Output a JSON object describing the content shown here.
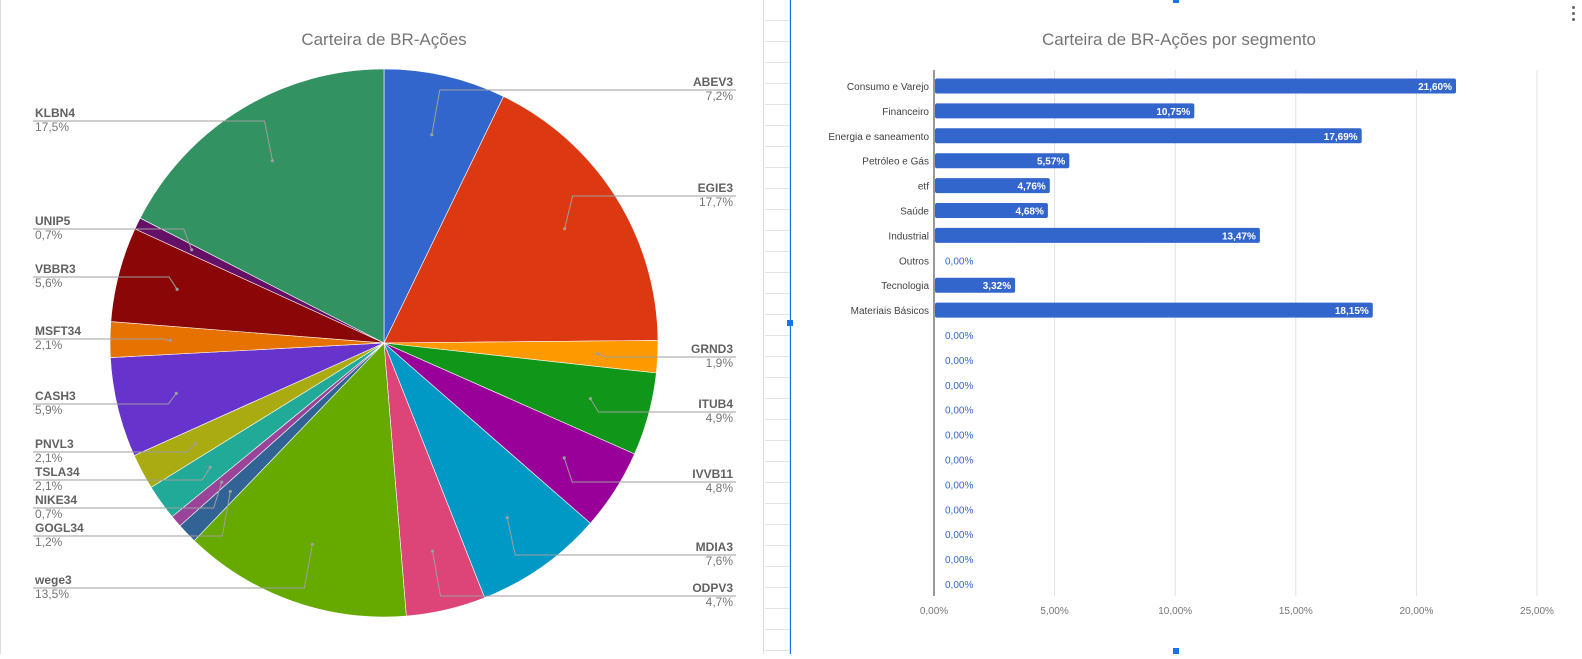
{
  "charts": [
    {
      "type": "pie",
      "title": "Carteira de BR-Ações",
      "slices": [
        {
          "label": "ABEV3",
          "pct_label": "7,2%",
          "value": 7.2,
          "color": "#3366cc"
        },
        {
          "label": "EGIE3",
          "pct_label": "17,7%",
          "value": 17.7,
          "color": "#dc3912"
        },
        {
          "label": "GRND3",
          "pct_label": "1,9%",
          "value": 1.9,
          "color": "#ff9900"
        },
        {
          "label": "ITUB4",
          "pct_label": "4,9%",
          "value": 4.9,
          "color": "#109618"
        },
        {
          "label": "IVVB11",
          "pct_label": "4,8%",
          "value": 4.8,
          "color": "#990099"
        },
        {
          "label": "MDIA3",
          "pct_label": "7,6%",
          "value": 7.6,
          "color": "#0099c6"
        },
        {
          "label": "ODPV3",
          "pct_label": "4,7%",
          "value": 4.7,
          "color": "#dd4477"
        },
        {
          "label": "wege3",
          "pct_label": "13,5%",
          "value": 13.5,
          "color": "#66aa00"
        },
        {
          "label": "GOGL34",
          "pct_label": "1,2%",
          "value": 1.2,
          "color": "#316395"
        },
        {
          "label": "NIKE34",
          "pct_label": "0,7%",
          "value": 0.7,
          "color": "#994499"
        },
        {
          "label": "TSLA34",
          "pct_label": "2,1%",
          "value": 2.1,
          "color": "#22aa99"
        },
        {
          "label": "PNVL3",
          "pct_label": "2,1%",
          "value": 2.1,
          "color": "#aaaa11"
        },
        {
          "label": "CASH3",
          "pct_label": "5,9%",
          "value": 5.9,
          "color": "#6633cc"
        },
        {
          "label": "MSFT34",
          "pct_label": "2,1%",
          "value": 2.1,
          "color": "#e67300"
        },
        {
          "label": "VBBR3",
          "pct_label": "5,6%",
          "value": 5.6,
          "color": "#8b0707"
        },
        {
          "label": "UNIP5",
          "pct_label": "0,7%",
          "value": 0.7,
          "color": "#651067"
        },
        {
          "label": "KLBN4",
          "pct_label": "17,5%",
          "value": 17.5,
          "color": "#329262"
        }
      ]
    },
    {
      "type": "bar",
      "orientation": "horizontal",
      "title": "Carteira de BR-Ações por segmento",
      "categories": [
        "Consumo e Varejo",
        "Financeiro",
        "Energia e saneamento",
        "Petróleo e Gás",
        "etf",
        "Saúde",
        "Industrial",
        "Outros",
        "Tecnologia",
        "Materiais Básicos",
        "",
        "",
        "",
        "",
        "",
        "",
        "",
        "",
        "",
        "",
        ""
      ],
      "values": [
        21.6,
        10.75,
        17.69,
        5.57,
        4.76,
        4.68,
        13.47,
        0,
        3.32,
        18.15,
        0,
        0,
        0,
        0,
        0,
        0,
        0,
        0,
        0,
        0,
        0
      ],
      "value_labels": [
        "21,60%",
        "10,75%",
        "17,69%",
        "5,57%",
        "4,76%",
        "4,68%",
        "13,47%",
        "0,00%",
        "3,32%",
        "18,15%",
        "0,00%",
        "0,00%",
        "0,00%",
        "0,00%",
        "0,00%",
        "0,00%",
        "0,00%",
        "0,00%",
        "0,00%",
        "0,00%",
        "0,00%"
      ],
      "x_ticks": [
        0,
        5,
        10,
        15,
        20,
        25
      ],
      "x_tick_labels": [
        "0,00%",
        "5,00%",
        "10,00%",
        "15,00%",
        "20,00%",
        "25,00%"
      ],
      "xlim": [
        0,
        25
      ],
      "grid": true,
      "color": "#3366cc"
    }
  ]
}
